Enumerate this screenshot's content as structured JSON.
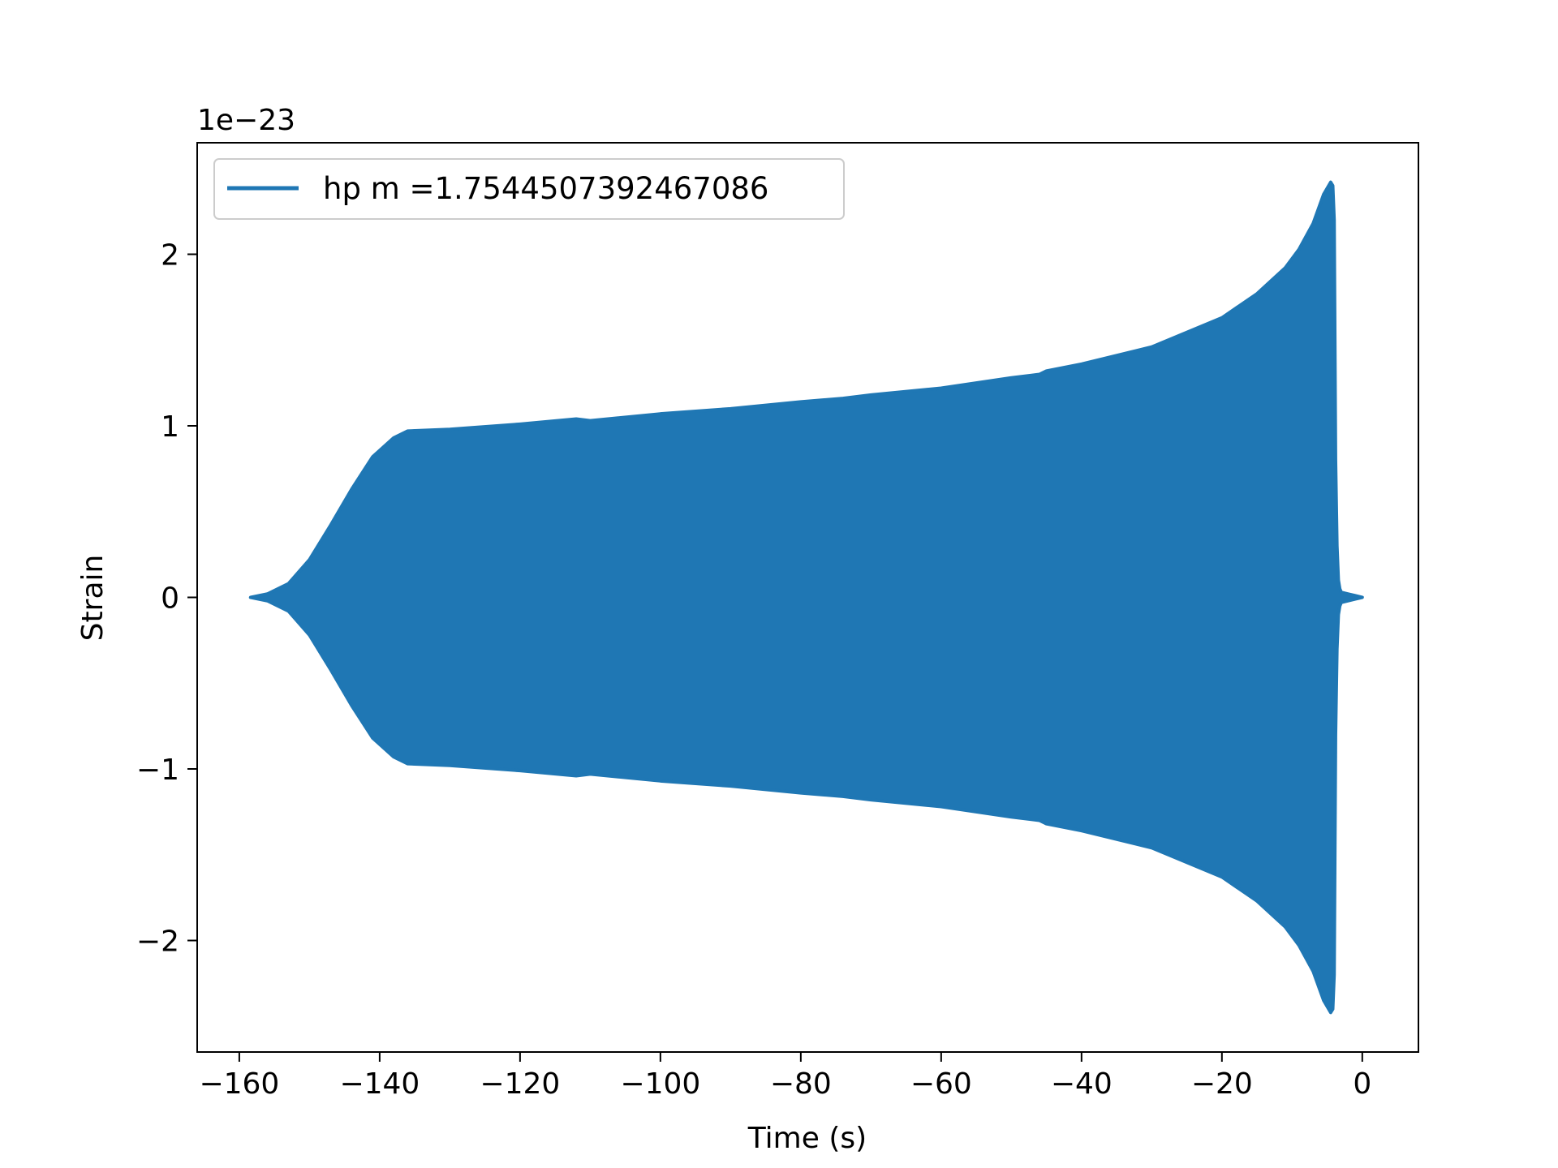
{
  "chart_data": {
    "type": "line",
    "title": "",
    "xlabel": "Time (s)",
    "ylabel": "Strain",
    "offset_label": "1e−23",
    "xlim": [
      -166,
      8
    ],
    "ylim": [
      -2.65,
      2.65
    ],
    "x_ticks": [
      -160,
      -140,
      -120,
      -100,
      -80,
      -60,
      -40,
      -20,
      0
    ],
    "x_tick_labels": [
      "−160",
      "−140",
      "−120",
      "−100",
      "−80",
      "−60",
      "−40",
      "−20",
      "0"
    ],
    "y_ticks": [
      -2,
      -1,
      0,
      1,
      2
    ],
    "y_tick_labels": [
      "−2",
      "−1",
      "0",
      "1",
      "2"
    ],
    "grid": false,
    "legend_position": "top-left",
    "series": [
      {
        "name": "hp m =1.7544507392467086",
        "color": "#1f77b4",
        "envelope_x": [
          -158.4,
          -156,
          -153,
          -150,
          -147,
          -144,
          -141,
          -138,
          -136,
          -130,
          -120,
          -112,
          -110,
          -100,
          -90,
          -80,
          -74,
          -70,
          -60,
          -50,
          -46,
          -45,
          -40,
          -30,
          -20,
          -15,
          -11,
          -9,
          -7,
          -5.5,
          -4.5,
          -4.2,
          -4.0,
          -3.9,
          -3.8,
          -3.6,
          -3.4,
          -3.2,
          -3.0,
          -2.0,
          -1.0,
          0.0
        ],
        "envelope_upper": [
          0.0,
          0.02,
          0.08,
          0.22,
          0.42,
          0.63,
          0.82,
          0.93,
          0.97,
          0.98,
          1.01,
          1.04,
          1.03,
          1.07,
          1.1,
          1.14,
          1.16,
          1.18,
          1.22,
          1.28,
          1.3,
          1.32,
          1.36,
          1.46,
          1.63,
          1.77,
          1.92,
          2.03,
          2.18,
          2.35,
          2.42,
          2.4,
          2.2,
          1.5,
          0.8,
          0.3,
          0.1,
          0.05,
          0.03,
          0.02,
          0.01,
          0.0
        ],
        "envelope_lower": [
          0.0,
          -0.02,
          -0.08,
          -0.22,
          -0.42,
          -0.63,
          -0.82,
          -0.93,
          -0.97,
          -0.98,
          -1.01,
          -1.04,
          -1.03,
          -1.07,
          -1.1,
          -1.14,
          -1.16,
          -1.18,
          -1.22,
          -1.28,
          -1.3,
          -1.32,
          -1.36,
          -1.46,
          -1.63,
          -1.77,
          -1.92,
          -2.03,
          -2.18,
          -2.35,
          -2.42,
          -2.4,
          -2.2,
          -1.5,
          -0.8,
          -0.3,
          -0.1,
          -0.05,
          -0.03,
          -0.02,
          -0.01,
          0.0
        ]
      }
    ]
  }
}
